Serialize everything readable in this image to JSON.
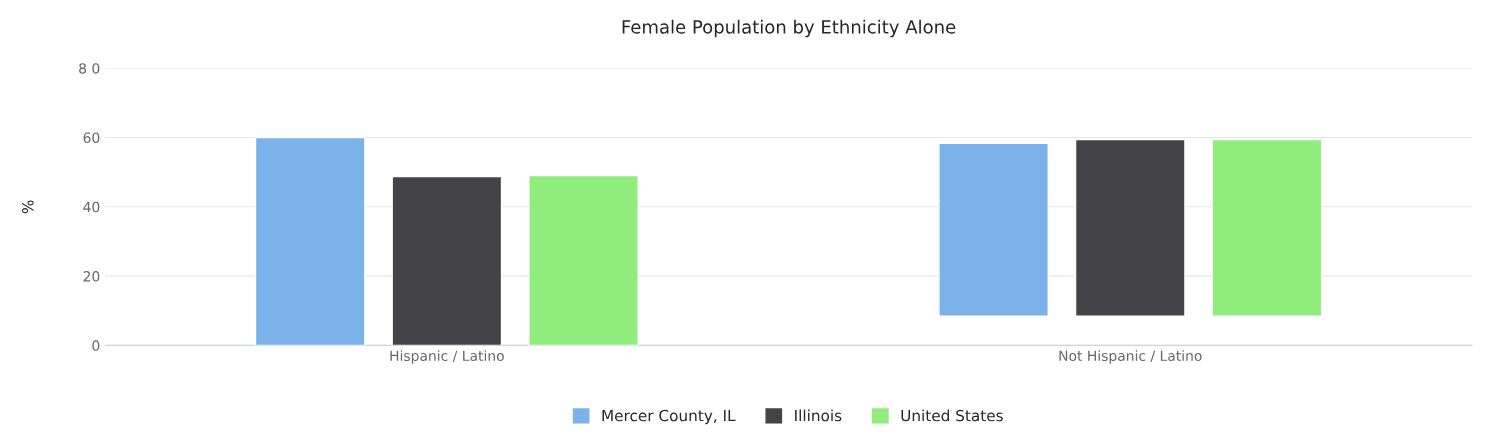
{
  "chart_data": {
    "type": "bar",
    "title": "Female Population by Ethnicity Alone",
    "ylabel": "%",
    "categories": [
      "Hispanic / Latino",
      "Not Hispanic / Latino"
    ],
    "series": [
      {
        "name": "Mercer County, IL",
        "color": "#7cb2ea",
        "values": [
          60.0,
          49.9
        ],
        "base": [
          0,
          8.4
        ]
      },
      {
        "name": "Illinois",
        "color": "#434348",
        "values": [
          48.7,
          51.0
        ],
        "base": [
          0,
          8.4
        ]
      },
      {
        "name": "United States",
        "color": "#90ec7d",
        "values": [
          49.0,
          51.0
        ],
        "base": [
          0,
          8.4
        ]
      }
    ],
    "ylim": [
      0,
      80
    ],
    "yticks": [
      0,
      20,
      40,
      60,
      {
        "value": 80,
        "label": "8 0"
      }
    ],
    "grid": "y",
    "legend": "bottom"
  }
}
